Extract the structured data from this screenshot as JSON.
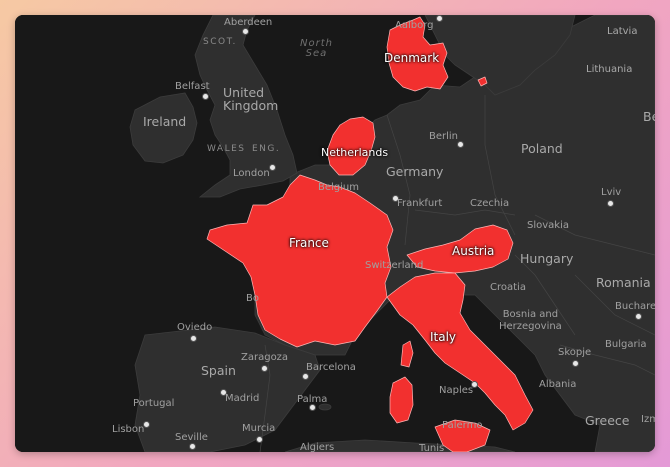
{
  "map": {
    "highlight_color": "#f2302f",
    "land_color": "#2f2f2f",
    "water_color": "#181818",
    "highlighted": [
      "Denmark",
      "Netherlands",
      "France",
      "Austria",
      "Italy"
    ],
    "country_labels": {
      "denmark": "Denmark",
      "netherlands": "Netherlands",
      "france": "France",
      "austria": "Austria",
      "italy": "Italy",
      "latvia": "Latvia",
      "lithuania": "Lithuania",
      "ireland": "Ireland",
      "united_kingdom_1": "United",
      "united_kingdom_2": "Kingdom",
      "germany": "Germany",
      "poland": "Poland",
      "belgium": "Belgium",
      "czechia": "Czechia",
      "slovakia": "Slovakia",
      "hungary": "Hungary",
      "switzerland": "Switzerland",
      "romania": "Romania",
      "croatia": "Croatia",
      "bosnia_1": "Bosnia and",
      "bosnia_2": "Herzegovina",
      "bulgaria": "Bulgaria",
      "spain": "Spain",
      "portugal": "Portugal",
      "albania": "Albania",
      "greece": "Greece",
      "scot": "SCOT.",
      "wales": "WALES",
      "eng": "ENG.",
      "north_sea_1": "North",
      "north_sea_2": "Sea",
      "edge_be": "Be",
      "edge_izm": "Izm",
      "edge_bo": "Bo"
    },
    "city_labels": {
      "aberdeen": "Aberdeen",
      "aalborg": "Aalborg",
      "belfast": "Belfast",
      "london": "London",
      "berlin": "Berlin",
      "frankfurt": "Frankfurt",
      "lviv": "Lviv",
      "oviedo": "Oviedo",
      "zaragoza": "Zaragoza",
      "barcelona": "Barcelona",
      "madrid": "Madrid",
      "palma": "Palma",
      "lisbon": "Lisbon",
      "seville": "Seville",
      "murcia": "Murcia",
      "algiers": "Algiers",
      "tunis": "Tunis",
      "naples": "Naples",
      "palermo": "Palermo",
      "skopje": "Skopje",
      "bucharest": "Buchare"
    }
  }
}
